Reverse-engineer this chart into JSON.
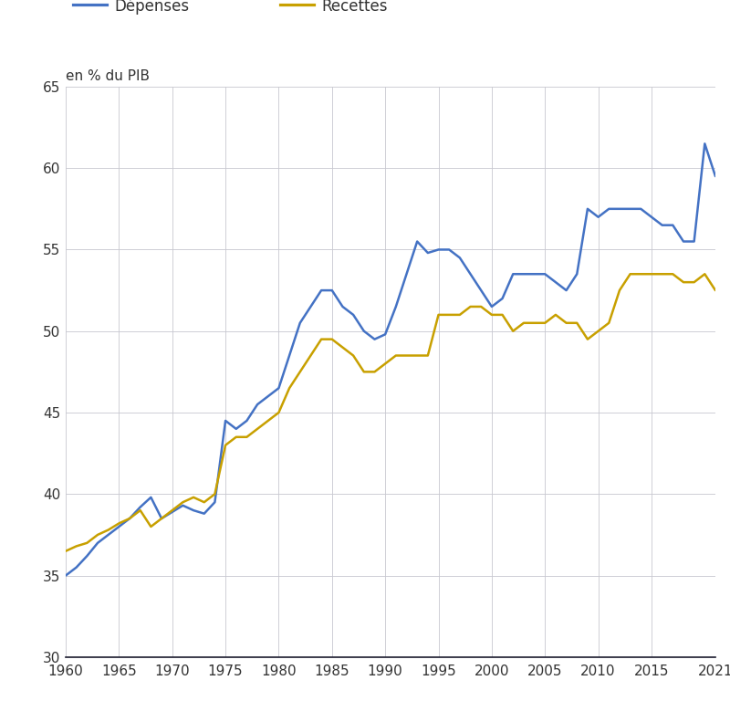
{
  "years": [
    1960,
    1961,
    1962,
    1963,
    1964,
    1965,
    1966,
    1967,
    1968,
    1969,
    1970,
    1971,
    1972,
    1973,
    1974,
    1975,
    1976,
    1977,
    1978,
    1979,
    1980,
    1981,
    1982,
    1983,
    1984,
    1985,
    1986,
    1987,
    1988,
    1989,
    1990,
    1991,
    1992,
    1993,
    1994,
    1995,
    1996,
    1997,
    1998,
    1999,
    2000,
    2001,
    2002,
    2003,
    2004,
    2005,
    2006,
    2007,
    2008,
    2009,
    2010,
    2011,
    2012,
    2013,
    2014,
    2015,
    2016,
    2017,
    2018,
    2019,
    2020,
    2021
  ],
  "depenses": [
    35.0,
    35.5,
    36.2,
    37.0,
    37.5,
    38.0,
    38.5,
    39.2,
    39.8,
    38.5,
    38.9,
    39.3,
    39.0,
    38.8,
    39.5,
    44.5,
    44.0,
    44.5,
    45.5,
    46.0,
    46.5,
    48.5,
    50.5,
    51.5,
    52.5,
    52.5,
    51.5,
    51.0,
    50.0,
    49.5,
    49.8,
    51.5,
    53.5,
    55.5,
    54.8,
    55.0,
    55.0,
    54.5,
    53.5,
    52.5,
    51.5,
    52.0,
    53.5,
    53.5,
    53.5,
    53.5,
    53.0,
    52.5,
    53.5,
    57.5,
    57.0,
    57.5,
    57.5,
    57.5,
    57.5,
    57.0,
    56.5,
    56.5,
    55.5,
    55.5,
    61.5,
    59.5
  ],
  "recettes": [
    36.5,
    36.8,
    37.0,
    37.5,
    37.8,
    38.2,
    38.5,
    39.0,
    38.0,
    38.5,
    39.0,
    39.5,
    39.8,
    39.5,
    40.0,
    43.0,
    43.5,
    43.5,
    44.0,
    44.5,
    45.0,
    46.5,
    47.5,
    48.5,
    49.5,
    49.5,
    49.0,
    48.5,
    47.5,
    47.5,
    48.0,
    48.5,
    48.5,
    48.5,
    48.5,
    51.0,
    51.0,
    51.0,
    51.5,
    51.5,
    51.0,
    51.0,
    50.0,
    50.5,
    50.5,
    50.5,
    51.0,
    50.5,
    50.5,
    49.5,
    50.0,
    50.5,
    52.5,
    53.5,
    53.5,
    53.5,
    53.5,
    53.5,
    53.0,
    53.0,
    53.5,
    52.5
  ],
  "depenses_color": "#4472C4",
  "recettes_color": "#C8A000",
  "line_width": 1.8,
  "ylabel": "en % du PIB",
  "ylim": [
    30,
    65
  ],
  "yticks": [
    30,
    35,
    40,
    45,
    50,
    55,
    60,
    65
  ],
  "xlim": [
    1960,
    2021
  ],
  "xticks": [
    1960,
    1965,
    1970,
    1975,
    1980,
    1985,
    1990,
    1995,
    2000,
    2005,
    2010,
    2015,
    2021
  ],
  "legend_depenses": "Dépenses",
  "legend_recettes": "Recettes",
  "background_color": "#ffffff",
  "grid_color": "#c8c8d0",
  "font_color": "#333333",
  "tick_fontsize": 11,
  "label_fontsize": 11,
  "legend_fontsize": 12
}
